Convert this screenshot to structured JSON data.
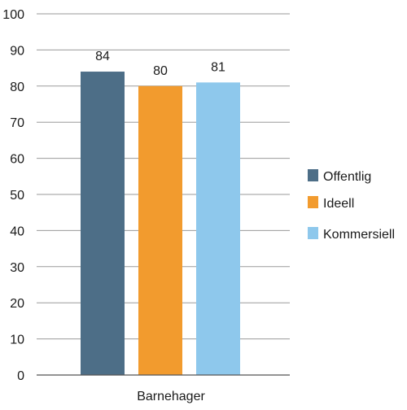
{
  "chart_data": {
    "type": "bar",
    "title": "",
    "xlabel": "",
    "ylabel": "",
    "categories": [
      "Barnehager"
    ],
    "series": [
      {
        "name": "Offentlig",
        "values": [
          84
        ],
        "color": "#4d6e87"
      },
      {
        "name": "Ideell",
        "values": [
          80
        ],
        "color": "#f29b2e"
      },
      {
        "name": "Kommersiell",
        "values": [
          81
        ],
        "color": "#8ec8ec"
      }
    ],
    "data_labels": [
      "84",
      "80",
      "81"
    ],
    "ylim": [
      0,
      100
    ],
    "yticks": [
      0,
      10,
      20,
      30,
      40,
      50,
      60,
      70,
      80,
      90,
      100
    ],
    "grid": true,
    "legend_position": "right"
  }
}
